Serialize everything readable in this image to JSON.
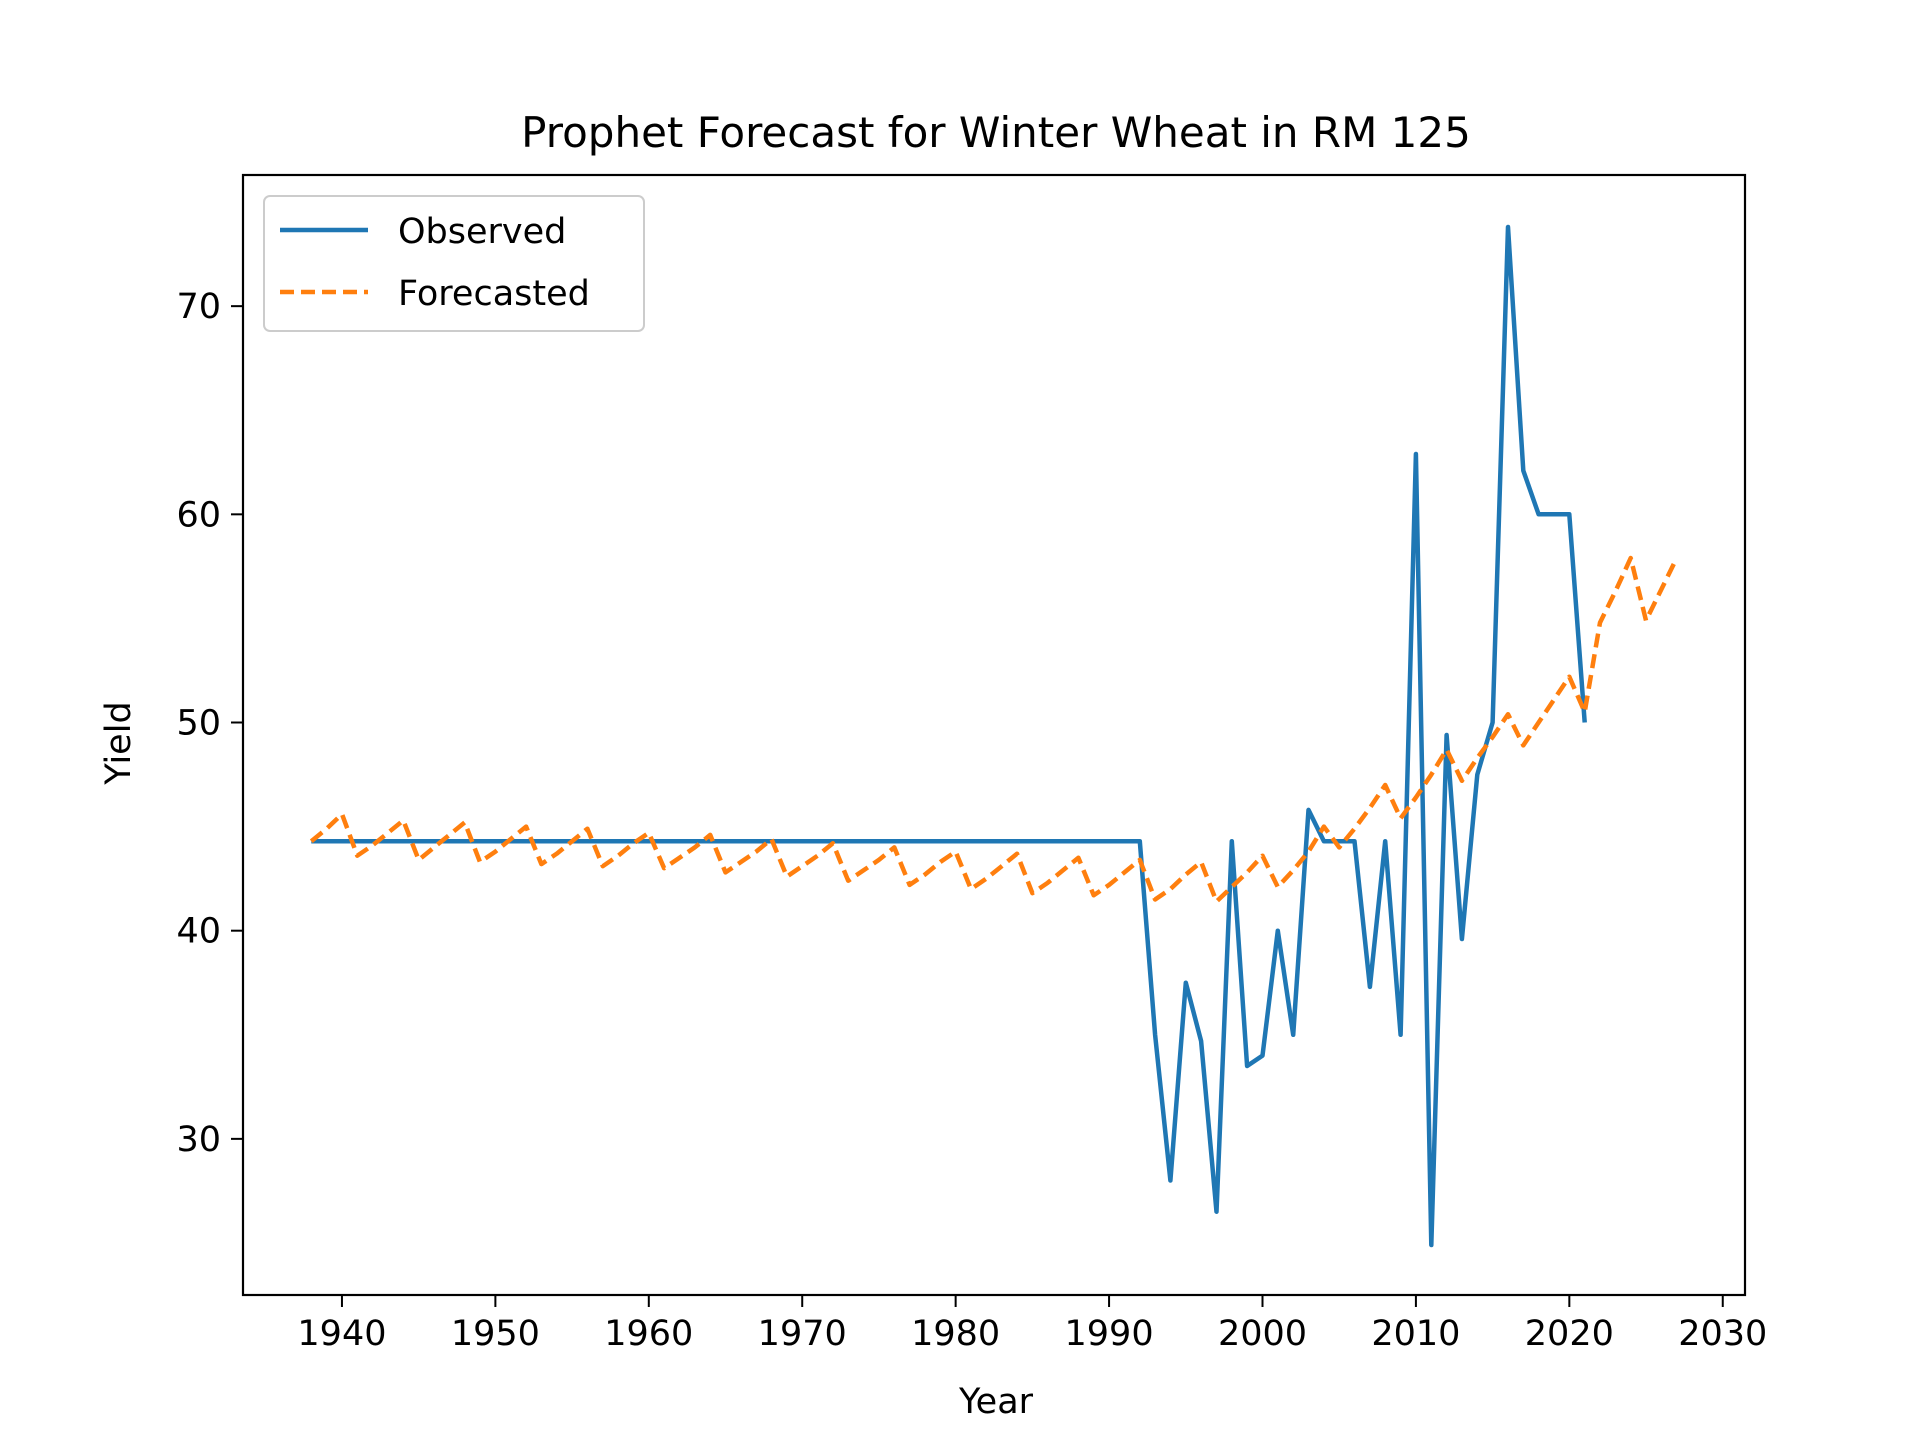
{
  "chart_data": {
    "type": "line",
    "title": "Prophet Forecast for Winter Wheat in RM 125",
    "xlabel": "Year",
    "ylabel": "Yield",
    "xlim": [
      1933.55,
      2031.45
    ],
    "ylim": [
      22.5,
      76.3
    ],
    "xticks": [
      1940,
      1950,
      1960,
      1970,
      1980,
      1990,
      2000,
      2010,
      2020,
      2030
    ],
    "yticks": [
      30,
      40,
      50,
      60,
      70
    ],
    "grid": false,
    "legend_position": "top-left",
    "series": [
      {
        "name": "Observed",
        "color": "#1f77b4",
        "dash": "solid",
        "x": [
          1938,
          1939,
          1940,
          1941,
          1942,
          1943,
          1944,
          1945,
          1946,
          1947,
          1948,
          1949,
          1950,
          1951,
          1952,
          1953,
          1954,
          1955,
          1956,
          1957,
          1958,
          1959,
          1960,
          1961,
          1962,
          1963,
          1964,
          1965,
          1966,
          1967,
          1968,
          1969,
          1970,
          1971,
          1972,
          1973,
          1974,
          1975,
          1976,
          1977,
          1978,
          1979,
          1980,
          1981,
          1982,
          1983,
          1984,
          1985,
          1986,
          1987,
          1988,
          1989,
          1990,
          1991,
          1992,
          1993,
          1994,
          1995,
          1996,
          1997,
          1998,
          1999,
          2000,
          2001,
          2002,
          2003,
          2004,
          2005,
          2006,
          2007,
          2008,
          2009,
          2010,
          2011,
          2012,
          2013,
          2014,
          2015,
          2016,
          2017,
          2018,
          2019,
          2020,
          2021
        ],
        "y": [
          44.3,
          44.3,
          44.3,
          44.3,
          44.3,
          44.3,
          44.3,
          44.3,
          44.3,
          44.3,
          44.3,
          44.3,
          44.3,
          44.3,
          44.3,
          44.3,
          44.3,
          44.3,
          44.3,
          44.3,
          44.3,
          44.3,
          44.3,
          44.3,
          44.3,
          44.3,
          44.3,
          44.3,
          44.3,
          44.3,
          44.3,
          44.3,
          44.3,
          44.3,
          44.3,
          44.3,
          44.3,
          44.3,
          44.3,
          44.3,
          44.3,
          44.3,
          44.3,
          44.3,
          44.3,
          44.3,
          44.3,
          44.3,
          44.3,
          44.3,
          44.3,
          44.3,
          44.3,
          44.3,
          44.3,
          35.0,
          28.0,
          37.5,
          34.7,
          26.5,
          44.3,
          33.5,
          34.0,
          40.0,
          35.0,
          45.8,
          44.3,
          44.3,
          44.3,
          37.3,
          44.3,
          35.0,
          62.9,
          24.9,
          49.4,
          39.6,
          47.5,
          50.0,
          73.8,
          62.1,
          60.0,
          60.0,
          60.0,
          50.0
        ]
      },
      {
        "name": "Forecasted",
        "color": "#ff7f0e",
        "dash": "dashed",
        "x": [
          1938,
          1939,
          1940,
          1941,
          1942,
          1943,
          1944,
          1945,
          1946,
          1947,
          1948,
          1949,
          1950,
          1951,
          1952,
          1953,
          1954,
          1955,
          1956,
          1957,
          1958,
          1959,
          1960,
          1961,
          1962,
          1963,
          1964,
          1965,
          1966,
          1967,
          1968,
          1969,
          1970,
          1971,
          1972,
          1973,
          1974,
          1975,
          1976,
          1977,
          1978,
          1979,
          1980,
          1981,
          1982,
          1983,
          1984,
          1985,
          1986,
          1987,
          1988,
          1989,
          1990,
          1991,
          1992,
          1993,
          1994,
          1995,
          1996,
          1997,
          1998,
          1999,
          2000,
          2001,
          2002,
          2003,
          2004,
          2005,
          2006,
          2007,
          2008,
          2009,
          2010,
          2011,
          2012,
          2013,
          2014,
          2015,
          2016,
          2017,
          2018,
          2019,
          2020,
          2021,
          2022,
          2023,
          2024,
          2025,
          2026,
          2027
        ],
        "y": [
          44.3,
          44.9,
          45.6,
          43.6,
          44.1,
          44.7,
          45.3,
          43.4,
          44.0,
          44.6,
          45.2,
          43.3,
          43.8,
          44.4,
          45.0,
          43.2,
          43.7,
          44.3,
          44.9,
          43.1,
          43.6,
          44.2,
          44.7,
          43.0,
          43.5,
          44.0,
          44.6,
          42.8,
          43.3,
          43.8,
          44.4,
          42.6,
          43.1,
          43.6,
          44.2,
          42.4,
          42.9,
          43.4,
          44.0,
          42.2,
          42.7,
          43.3,
          43.8,
          42.0,
          42.5,
          43.1,
          43.7,
          41.8,
          42.3,
          42.9,
          43.5,
          41.7,
          42.2,
          42.8,
          43.4,
          41.5,
          42.0,
          42.7,
          43.3,
          41.4,
          42.1,
          42.8,
          43.6,
          42.1,
          42.9,
          43.8,
          45.0,
          44.0,
          44.9,
          45.9,
          47.0,
          45.4,
          46.4,
          47.5,
          48.7,
          47.2,
          48.3,
          49.3,
          50.4,
          48.9,
          50.0,
          51.1,
          52.2,
          50.5,
          54.8,
          56.3,
          57.9,
          54.9,
          56.4,
          57.9
        ]
      }
    ]
  }
}
